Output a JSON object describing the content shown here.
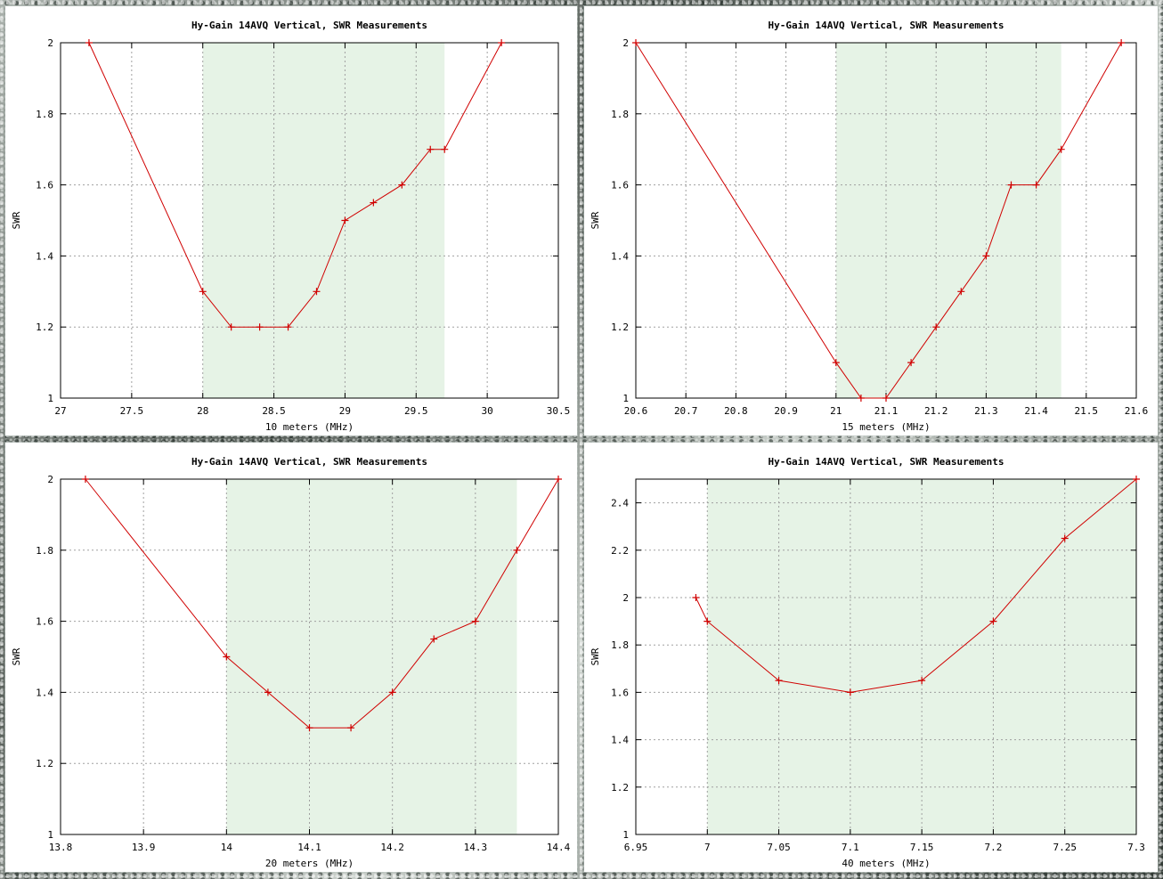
{
  "chart_data": [
    {
      "type": "line",
      "title": "Hy-Gain 14AVQ Vertical, SWR Measurements",
      "xlabel": "10 meters (MHz)",
      "ylabel": "SWR",
      "xlim": [
        27,
        30.5
      ],
      "ylim": [
        1,
        2
      ],
      "xticks": [
        "27",
        "27.5",
        "28",
        "28.5",
        "29",
        "29.5",
        "30",
        "30.5"
      ],
      "yticks": [
        "1",
        "1.2",
        "1.4",
        "1.6",
        "1.8",
        "2"
      ],
      "band": [
        28.0,
        29.7
      ],
      "grid": true,
      "colors": {
        "line": "#d00000",
        "band": "#e6f3e6"
      },
      "x": [
        27.2,
        28.0,
        28.2,
        28.4,
        28.6,
        28.8,
        29.0,
        29.2,
        29.4,
        29.6,
        29.7,
        30.1
      ],
      "y": [
        2.0,
        1.3,
        1.2,
        1.2,
        1.2,
        1.3,
        1.5,
        1.55,
        1.6,
        1.7,
        1.7,
        2.0
      ]
    },
    {
      "type": "line",
      "title": "Hy-Gain 14AVQ Vertical, SWR Measurements",
      "xlabel": "15 meters (MHz)",
      "ylabel": "SWR",
      "xlim": [
        20.6,
        21.6
      ],
      "ylim": [
        1,
        2
      ],
      "xticks": [
        "20.6",
        "20.7",
        "20.8",
        "20.9",
        "21",
        "21.1",
        "21.2",
        "21.3",
        "21.4",
        "21.5",
        "21.6"
      ],
      "yticks": [
        "1",
        "1.2",
        "1.4",
        "1.6",
        "1.8",
        "2"
      ],
      "band": [
        21.0,
        21.45
      ],
      "grid": true,
      "colors": {
        "line": "#d00000",
        "band": "#e6f3e6"
      },
      "x": [
        20.6,
        21.0,
        21.05,
        21.1,
        21.15,
        21.2,
        21.25,
        21.3,
        21.35,
        21.4,
        21.45,
        21.57
      ],
      "y": [
        2.0,
        1.1,
        1.0,
        1.0,
        1.1,
        1.2,
        1.3,
        1.4,
        1.6,
        1.6,
        1.7,
        2.0
      ]
    },
    {
      "type": "line",
      "title": "Hy-Gain 14AVQ Vertical, SWR Measurements",
      "xlabel": "20 meters (MHz)",
      "ylabel": "SWR",
      "xlim": [
        13.8,
        14.4
      ],
      "ylim": [
        1,
        2
      ],
      "xticks": [
        "13.8",
        "13.9",
        "14",
        "14.1",
        "14.2",
        "14.3",
        "14.4"
      ],
      "yticks": [
        "1",
        "1.2",
        "1.4",
        "1.6",
        "1.8",
        "2"
      ],
      "band": [
        14.0,
        14.35
      ],
      "grid": true,
      "colors": {
        "line": "#d00000",
        "band": "#e6f3e6"
      },
      "x": [
        13.83,
        14.0,
        14.05,
        14.1,
        14.15,
        14.2,
        14.25,
        14.3,
        14.35,
        14.4
      ],
      "y": [
        2.0,
        1.5,
        1.4,
        1.3,
        1.3,
        1.4,
        1.55,
        1.6,
        1.8,
        2.0
      ]
    },
    {
      "type": "line",
      "title": "Hy-Gain 14AVQ Vertical, SWR Measurements",
      "xlabel": "40 meters (MHz)",
      "ylabel": "SWR",
      "xlim": [
        6.95,
        7.3
      ],
      "ylim": [
        1,
        2.5
      ],
      "xticks": [
        "6.95",
        "7",
        "7.05",
        "7.1",
        "7.15",
        "7.2",
        "7.25",
        "7.3"
      ],
      "yticks": [
        "1",
        "1.2",
        "1.4",
        "1.6",
        "1.8",
        "2",
        "2.2",
        "2.4"
      ],
      "band": [
        7.0,
        7.3
      ],
      "grid": true,
      "colors": {
        "line": "#d00000",
        "band": "#e6f3e6"
      },
      "x": [
        6.992,
        7.0,
        7.05,
        7.1,
        7.15,
        7.2,
        7.25,
        7.3
      ],
      "y": [
        2.0,
        1.9,
        1.65,
        1.6,
        1.65,
        1.9,
        2.25,
        2.5
      ]
    }
  ]
}
